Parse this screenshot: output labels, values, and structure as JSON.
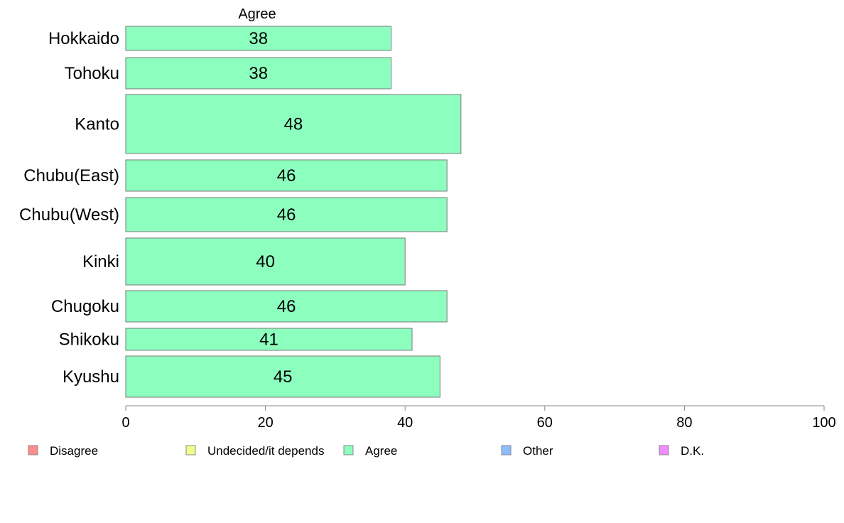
{
  "chart_data": {
    "type": "bar",
    "orientation": "horizontal",
    "column_header": "Agree",
    "categories": [
      "Hokkaido",
      "Tohoku",
      "Kanto",
      "Chubu(East)",
      "Chubu(West)",
      "Kinki",
      "Chugoku",
      "Shikoku",
      "Kyushu"
    ],
    "series": [
      {
        "name": "Agree",
        "values": [
          38,
          38,
          48,
          46,
          46,
          40,
          46,
          41,
          45
        ],
        "color": "#8cffbe"
      }
    ],
    "value_labels": [
      "38",
      "38",
      "48",
      "46",
      "46",
      "40",
      "46",
      "41",
      "45"
    ],
    "xlim": [
      0,
      100
    ],
    "x_ticks": [
      0,
      20,
      40,
      60,
      80,
      100
    ],
    "grid": false,
    "legend": {
      "placement": "bottom",
      "items": [
        {
          "label": "Disagree",
          "color": "#ff8c8c"
        },
        {
          "label": "Undecided/it depends",
          "color": "#f0ff8c"
        },
        {
          "label": "Agree",
          "color": "#8cffbe"
        },
        {
          "label": "Other",
          "color": "#8cbeff"
        },
        {
          "label": "D.K.",
          "color": "#f08cff"
        }
      ]
    }
  }
}
